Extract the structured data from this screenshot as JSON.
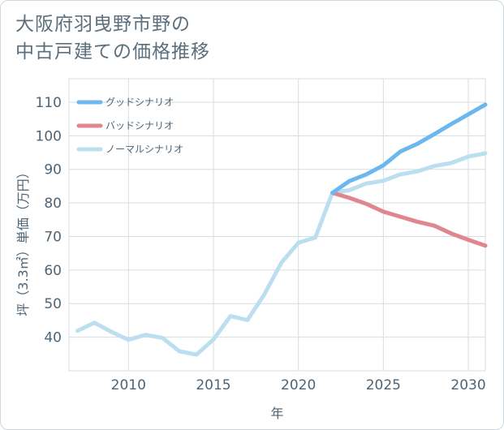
{
  "title_lines": [
    "大阪府羽曳野市野の",
    "中古戸建ての価格推移"
  ],
  "chart_data": {
    "type": "line",
    "title": "大阪府羽曳野市野の中古戸建ての価格推移",
    "xlabel": "年",
    "ylabel": "坪（3.3㎡）単価（万円）",
    "xlim": [
      2006.5,
      2031
    ],
    "ylim": [
      30,
      117
    ],
    "xticks": [
      2010,
      2015,
      2020,
      2025,
      2030
    ],
    "yticks": [
      40,
      50,
      60,
      70,
      80,
      90,
      100,
      110
    ],
    "grid": true,
    "legend_position": "top-left",
    "series": [
      {
        "name": "グッドシナリオ",
        "color": "#6cb8ee",
        "points": [
          [
            2022,
            83.0
          ],
          [
            2023,
            86.5
          ],
          [
            2024,
            88.5
          ],
          [
            2025,
            91.2
          ],
          [
            2026,
            95.3
          ],
          [
            2027,
            97.6
          ],
          [
            2028,
            100.5
          ],
          [
            2029,
            103.5
          ],
          [
            2030,
            106.4
          ],
          [
            2031,
            109.3
          ]
        ]
      },
      {
        "name": "バッドシナリオ",
        "color": "#e0868e",
        "points": [
          [
            2022,
            83.0
          ],
          [
            2023,
            81.5
          ],
          [
            2024,
            79.7
          ],
          [
            2025,
            77.4
          ],
          [
            2026,
            75.9
          ],
          [
            2027,
            74.4
          ],
          [
            2028,
            73.2
          ],
          [
            2029,
            70.9
          ],
          [
            2030,
            69.0
          ],
          [
            2031,
            67.3
          ]
        ]
      },
      {
        "name": "ノーマルシナリオ",
        "color": "#bcdff0",
        "points": [
          [
            2007,
            41.9
          ],
          [
            2008,
            44.3
          ],
          [
            2009,
            41.6
          ],
          [
            2010,
            39.2
          ],
          [
            2011,
            40.7
          ],
          [
            2012,
            39.8
          ],
          [
            2013,
            35.8
          ],
          [
            2014,
            34.8
          ],
          [
            2015,
            39.3
          ],
          [
            2016,
            46.3
          ],
          [
            2017,
            45.1
          ],
          [
            2018,
            52.8
          ],
          [
            2019,
            62.2
          ],
          [
            2020,
            68.1
          ],
          [
            2021,
            69.7
          ],
          [
            2022,
            83.0
          ],
          [
            2023,
            83.8
          ],
          [
            2024,
            85.8
          ],
          [
            2025,
            86.6
          ],
          [
            2026,
            88.5
          ],
          [
            2027,
            89.4
          ],
          [
            2028,
            91.0
          ],
          [
            2029,
            91.9
          ],
          [
            2030,
            93.8
          ],
          [
            2031,
            94.8
          ]
        ]
      }
    ]
  }
}
